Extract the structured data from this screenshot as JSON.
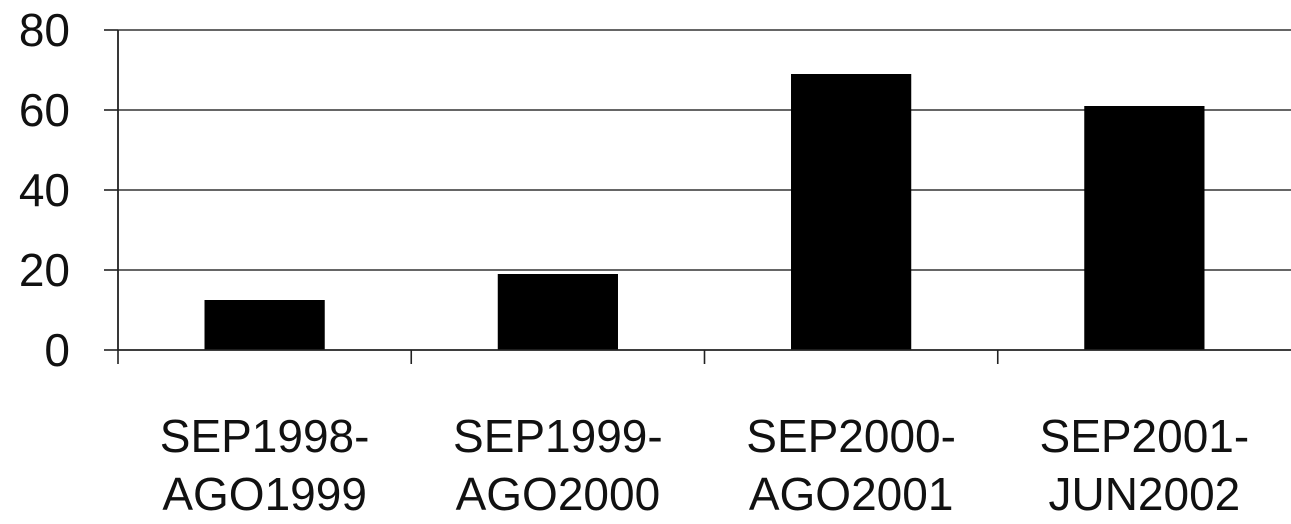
{
  "chart_data": {
    "type": "bar",
    "title": "",
    "xlabel": "",
    "ylabel": "",
    "categories": [
      [
        "SEP1998-",
        "AGO1999"
      ],
      [
        "SEP1999-",
        "AGO2000"
      ],
      [
        "SEP2000-",
        "AGO2001"
      ],
      [
        "SEP2001-",
        "JUN2002"
      ]
    ],
    "values": [
      12.5,
      19,
      69,
      61
    ],
    "ylim": [
      0,
      80
    ],
    "yticks": [
      "0",
      "20",
      "40",
      "60",
      "80"
    ],
    "grid": true,
    "legend": "none",
    "colors": {
      "bar": "#000000",
      "axis": "#222222",
      "grid": "#333333",
      "background": "#ffffff"
    }
  }
}
